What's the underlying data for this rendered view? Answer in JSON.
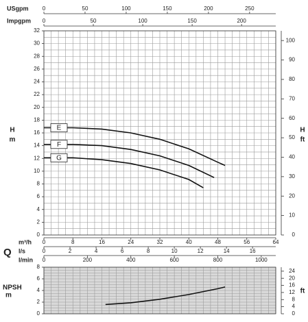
{
  "chart_data": [
    {
      "type": "line",
      "y_label": "H",
      "y_unit": "m",
      "y2_label": "H",
      "y2_unit": "ft",
      "x_label": "Q",
      "xlim": [
        0,
        64
      ],
      "x_axes": [
        {
          "label": "USgpm",
          "lim": [
            0,
            281.8
          ],
          "ticks": [
            0,
            50,
            100,
            150,
            200,
            250
          ],
          "side": "top"
        },
        {
          "label": "Impgpm",
          "lim": [
            0,
            234.6
          ],
          "ticks": [
            0,
            50,
            100,
            150,
            200
          ],
          "side": "top"
        },
        {
          "label": "m³/h",
          "lim": [
            0,
            64
          ],
          "ticks": [
            0,
            8,
            16,
            24,
            32,
            40,
            48,
            56,
            64
          ],
          "side": "bottom"
        },
        {
          "label": "l/s",
          "lim": [
            0,
            17.78
          ],
          "ticks": [
            0,
            2,
            4,
            6,
            8,
            10,
            12,
            14,
            16
          ],
          "side": "bottom"
        },
        {
          "label": "l/min",
          "lim": [
            0,
            1066.7
          ],
          "ticks": [
            0,
            200,
            400,
            600,
            800,
            1000
          ],
          "side": "bottom"
        }
      ],
      "ylim": [
        0,
        32
      ],
      "yticks": [
        0,
        2,
        4,
        6,
        8,
        10,
        12,
        14,
        16,
        18,
        20,
        22,
        24,
        26,
        28,
        30,
        32
      ],
      "y2lim": [
        0,
        104.99
      ],
      "y2ticks": [
        0,
        10,
        20,
        30,
        40,
        50,
        60,
        70,
        80,
        90,
        100
      ],
      "grid": true,
      "series": [
        {
          "name": "E",
          "color": "#111111",
          "x": [
            0,
            8,
            16,
            24,
            32,
            40,
            48,
            50
          ],
          "values": [
            16.8,
            16.8,
            16.6,
            16.0,
            15.0,
            13.5,
            11.4,
            10.9
          ]
        },
        {
          "name": "F",
          "color": "#111111",
          "x": [
            0,
            8,
            16,
            24,
            32,
            40,
            47
          ],
          "values": [
            14.2,
            14.2,
            14.0,
            13.4,
            12.4,
            10.9,
            9.0
          ]
        },
        {
          "name": "G",
          "color": "#111111",
          "x": [
            0,
            8,
            16,
            24,
            32,
            40,
            44
          ],
          "values": [
            12.1,
            12.1,
            11.8,
            11.2,
            10.2,
            8.7,
            7.4
          ]
        }
      ]
    },
    {
      "type": "line",
      "y_label": "NPSH",
      "y_unit": "m",
      "y2_unit": "ft",
      "xlim": [
        0,
        64
      ],
      "ylim": [
        0,
        8
      ],
      "yticks": [
        0,
        2,
        4,
        6,
        8
      ],
      "y2lim": [
        0,
        26.25
      ],
      "y2ticks": [
        0,
        4,
        8,
        12,
        16,
        20,
        24
      ],
      "grid": true,
      "background": "#d9d9d9",
      "series": [
        {
          "color": "#111111",
          "x": [
            17,
            24,
            32,
            40,
            48,
            50
          ],
          "values": [
            1.6,
            1.9,
            2.5,
            3.3,
            4.3,
            4.6
          ]
        }
      ]
    }
  ]
}
